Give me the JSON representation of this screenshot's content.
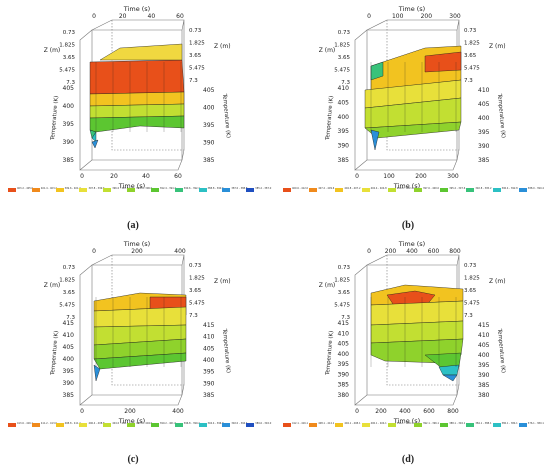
{
  "panels": [
    {
      "caption": "(a)",
      "time_axis": {
        "label": "Time (s)",
        "ticks": [
          "0",
          "20",
          "40",
          "60"
        ]
      },
      "z_axis": {
        "label": "Z (m)",
        "ticks": [
          "0.73",
          "1.825",
          "3.65",
          "5.475",
          "7.3"
        ]
      },
      "temp_axis_left": {
        "ticks": [
          "405",
          "400",
          "395",
          "390",
          "385"
        ]
      },
      "temp_axis_right": {
        "label": "Temperature (K)",
        "ticks": [
          "405",
          "400",
          "395",
          "390",
          "385"
        ]
      },
      "temp_axis_left_label": "Temperature (K)",
      "legend": [
        "403.2 - 405.0",
        "401.4 - 403.2",
        "399.6 - 401.4",
        "397.8 - 399.6",
        "396.0 - 397.8",
        "394.2 - 396.0",
        "392.4 - 394.2",
        "390.6 - 392.4",
        "388.8 - 390.6",
        "387.0 - 388.8",
        "385.2 - 387.0"
      ]
    },
    {
      "caption": "(b)",
      "time_axis": {
        "label": "Time (s)",
        "ticks": [
          "0",
          "100",
          "200",
          "300"
        ]
      },
      "z_axis": {
        "label": "Z (m)",
        "ticks": [
          "0.73",
          "1.825",
          "3.65",
          "5.475",
          "7.3"
        ]
      },
      "temp_axis_left": {
        "ticks": [
          "410",
          "405",
          "400",
          "395",
          "390",
          "385"
        ]
      },
      "temp_axis_right": {
        "label": "Temperature (K)",
        "ticks": [
          "410",
          "405",
          "400",
          "395",
          "390",
          "385"
        ]
      },
      "temp_axis_left_label": "Temperature (K)",
      "legend": [
        "409.6 - 412.0",
        "407.2 - 409.6",
        "404.8 - 407.2",
        "402.4 - 404.8",
        "400.0 - 402.4",
        "397.6 - 400.0",
        "395.2 - 397.6",
        "392.8 - 395.2",
        "390.4 - 392.8",
        "388.0 - 390.4"
      ]
    },
    {
      "caption": "(c)",
      "time_axis": {
        "label": "Time (s)",
        "ticks": [
          "0",
          "200",
          "400"
        ]
      },
      "z_axis": {
        "label": "Z (m)",
        "ticks": [
          "0.73",
          "1.825",
          "3.65",
          "5.475",
          "7.3"
        ]
      },
      "temp_axis_left": {
        "ticks": [
          "415",
          "410",
          "405",
          "400",
          "395",
          "390",
          "385"
        ]
      },
      "temp_axis_right": {
        "label": "Temperature (K)",
        "ticks": [
          "415",
          "410",
          "405",
          "400",
          "395",
          "390",
          "385"
        ]
      },
      "temp_axis_left_label": "Temperature (K)",
      "legend": [
        "413.6 - 416.1",
        "411.2 - 413.6",
        "408.8 - 411.2",
        "406.4 - 408.8",
        "404.0 - 406.4",
        "401.6 - 404.0",
        "399.2 - 401.6",
        "396.8 - 399.2",
        "394.4 - 396.8",
        "392.0 - 394.4",
        "389.6 - 392.0"
      ]
    },
    {
      "caption": "(d)",
      "time_axis": {
        "label": "Time (s)",
        "ticks": [
          "0",
          "200",
          "400",
          "600",
          "800"
        ]
      },
      "z_axis": {
        "label": "Z (m)",
        "ticks": [
          "0.73",
          "1.825",
          "3.65",
          "5.475",
          "7.3"
        ]
      },
      "temp_axis_left": {
        "ticks": [
          "415",
          "410",
          "405",
          "400",
          "395",
          "390",
          "385",
          "380"
        ]
      },
      "temp_axis_right": {
        "label": "Temperature (K)",
        "ticks": [
          "415",
          "410",
          "405",
          "400",
          "395",
          "390",
          "385",
          "380"
        ]
      },
      "temp_axis_left_label": "Temperature (K)",
      "legend": [
        "412.1 - 416.1",
        "408.1 - 412.1",
        "404.1 - 408.1",
        "400.1 - 404.1",
        "396.1 - 400.1",
        "392.1 - 396.1",
        "388.1 - 392.1",
        "384.1 - 388.1",
        "380.1 - 384.1",
        "376.1 - 380.1"
      ]
    }
  ],
  "legend_colors": [
    "#e8501a",
    "#f08a1c",
    "#f2c320",
    "#e8e03a",
    "#c2df32",
    "#8fd22c",
    "#5cc631",
    "#38c27a",
    "#2cc0c4",
    "#2a8fd8",
    "#1f4fc0"
  ]
}
